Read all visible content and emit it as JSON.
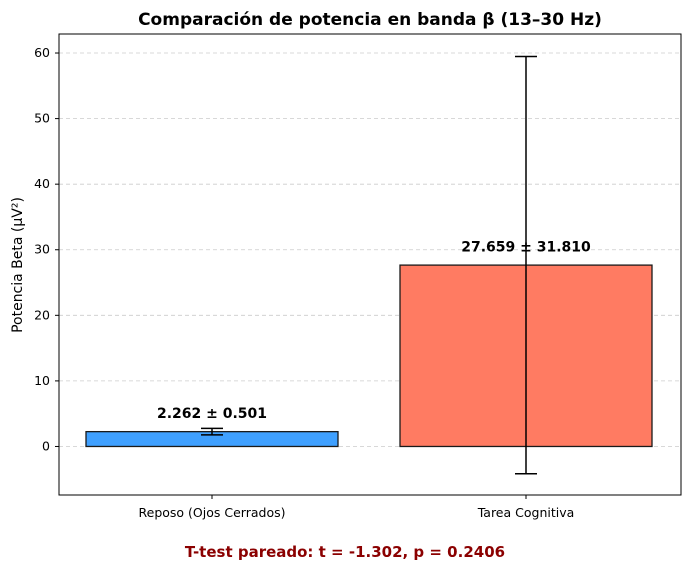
{
  "chart_data": {
    "type": "bar",
    "title": "Comparación de potencia en banda β (13–30 Hz)",
    "xlabel": "",
    "ylabel": "Potencia Beta (μV²)",
    "categories": [
      "Reposo (Ojos Cerrados)",
      "Tarea Cognitiva"
    ],
    "values": [
      2.262,
      27.659
    ],
    "errors": [
      0.501,
      31.81
    ],
    "value_labels": [
      "2.262 ± 0.501",
      "27.659 ± 31.810"
    ],
    "colors": [
      "#3fa0ff",
      "#ff7b62"
    ],
    "ylim": [
      -7.4,
      62.9
    ],
    "yticks": [
      0,
      10,
      20,
      30,
      40,
      50,
      60
    ],
    "grid": "y-dashed"
  },
  "footer": {
    "text": "T-test pareado: t = -1.302, p = 0.2406",
    "color": "#8b0000"
  }
}
